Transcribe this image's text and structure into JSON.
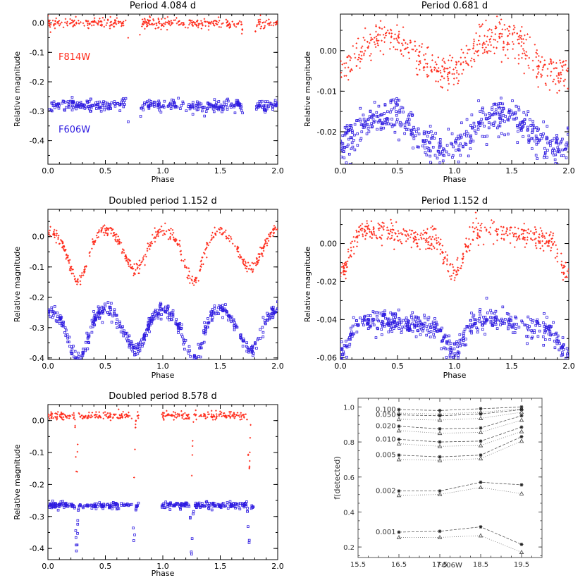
{
  "colors": {
    "f814w": "#ff2a1a",
    "f606w": "#2d1ae0",
    "axis": "#000000",
    "completeness": "#333333"
  },
  "chart_data": [
    {
      "type": "scatter",
      "title": "Period  4.084 d",
      "xlabel": "Phase",
      "ylabel": "Relative magnitude",
      "xlim": [
        0,
        2
      ],
      "ylim": [
        0.03,
        -0.48
      ],
      "y_inverted": true,
      "xticks": [
        "0.0",
        "0.5",
        "1.0",
        "1.5",
        "2.0"
      ],
      "yticks": [
        "0.0",
        "-0.1",
        "-0.2",
        "-0.3",
        "-0.4"
      ],
      "annotations": [
        "F814W",
        "F606W"
      ],
      "model": {
        "kind": "eclipse",
        "series": [
          {
            "name": "F814W",
            "color_key": "f814w",
            "marker": "dot",
            "offset": 0.0,
            "scatter": 0.009,
            "depth1": 0.42,
            "depth2": 0.42,
            "width": 0.035,
            "center1": 0.75,
            "center2": 0.75,
            "n": 400,
            "gaps": [
              [
                0.7,
                0.8
              ],
              [
                1.7,
                1.8
              ]
            ]
          },
          {
            "name": "F606W",
            "color_key": "f606w",
            "marker": "square",
            "offset": -0.28,
            "scatter": 0.009,
            "depth1": 0.42,
            "depth2": 0.42,
            "width": 0.035,
            "center1": 0.75,
            "center2": 0.75,
            "n": 400,
            "gaps": [
              [
                0.7,
                0.8
              ],
              [
                1.7,
                1.8
              ]
            ]
          }
        ]
      }
    },
    {
      "type": "scatter",
      "title": "Period  0.681 d",
      "xlabel": "Phase",
      "ylabel": "Relative magnitude",
      "xlim": [
        0,
        2
      ],
      "ylim": [
        0.009,
        -0.028
      ],
      "y_inverted": true,
      "xticks": [
        "0.0",
        "0.5",
        "1.0",
        "1.5",
        "2.0"
      ],
      "yticks": [
        "0.00",
        "-0.01",
        "-0.02"
      ],
      "model": {
        "kind": "sine",
        "series": [
          {
            "name": "F814W",
            "color_key": "f814w",
            "marker": "dot",
            "offset": -0.001,
            "amp": 0.0045,
            "phase0": 0.0,
            "harm": 1,
            "scatter": 0.0022,
            "n": 500
          },
          {
            "name": "F606W",
            "color_key": "f606w",
            "marker": "square",
            "offset": -0.02,
            "amp": 0.0045,
            "phase0": 0.0,
            "harm": 1,
            "scatter": 0.0022,
            "n": 500
          }
        ]
      }
    },
    {
      "type": "scatter",
      "title": "Doubled period  1.152 d",
      "xlabel": "Phase",
      "ylabel": "Relative magnitude",
      "xlim": [
        0,
        2
      ],
      "ylim": [
        0.09,
        -0.405
      ],
      "y_inverted": true,
      "xticks": [
        "0.0",
        "0.5",
        "1.0",
        "1.5",
        "2.0"
      ],
      "yticks": [
        "0.0",
        "-0.1",
        "-0.2",
        "-0.3",
        "-0.4"
      ],
      "model": {
        "kind": "ellipsoidal",
        "series": [
          {
            "name": "F814W",
            "color_key": "f814w",
            "marker": "dot",
            "offset": -0.02,
            "amp1": 0.09,
            "amp2": 0.05,
            "scatter": 0.01,
            "n": 500
          },
          {
            "name": "F606W",
            "color_key": "f606w",
            "marker": "square",
            "offset": -0.28,
            "amp1": 0.09,
            "amp2": 0.05,
            "scatter": 0.012,
            "n": 500
          }
        ]
      }
    },
    {
      "type": "scatter",
      "title": "Period  1.152 d",
      "xlabel": "Phase",
      "ylabel": "Relative magnitude",
      "xlim": [
        0,
        2
      ],
      "ylim": [
        0.018,
        -0.061
      ],
      "y_inverted": true,
      "xticks": [
        "0.0",
        "0.5",
        "1.0",
        "1.5",
        "2.0"
      ],
      "yticks": [
        "0.00",
        "-0.02",
        "-0.04",
        "-0.06"
      ],
      "model": {
        "kind": "dip",
        "series": [
          {
            "name": "F814W",
            "color_key": "f814w",
            "marker": "dot",
            "offset": 0.005,
            "depth": 0.021,
            "center": 1.0,
            "width": 0.22,
            "scatter": 0.003,
            "n": 500
          },
          {
            "name": "F606W",
            "color_key": "f606w",
            "marker": "square",
            "offset": -0.042,
            "depth": 0.015,
            "center": 1.0,
            "width": 0.22,
            "scatter": 0.003,
            "n": 500
          }
        ]
      }
    },
    {
      "type": "scatter",
      "title": "Doubled period  8.578 d",
      "xlabel": "Phase",
      "ylabel": "Relative magnitude",
      "xlim": [
        0,
        2
      ],
      "ylim": [
        0.05,
        -0.435
      ],
      "y_inverted": true,
      "xticks": [
        "0.0",
        "0.5",
        "1.0",
        "1.5",
        "2.0"
      ],
      "yticks": [
        "0.0",
        "-0.1",
        "-0.2",
        "-0.3",
        "-0.4"
      ],
      "model": {
        "kind": "eclipse",
        "series": [
          {
            "name": "F814W",
            "color_key": "f814w",
            "marker": "dot",
            "offset": 0.015,
            "scatter": 0.006,
            "depth1": 0.2,
            "depth2": 0.19,
            "width": 0.01,
            "center1": 0.25,
            "center2": 0.75,
            "n": 420,
            "gaps": [
              [
                0.79,
                0.99
              ],
              [
                1.79,
                2.0
              ]
            ]
          },
          {
            "name": "F606W",
            "color_key": "f606w",
            "marker": "square",
            "offset": -0.265,
            "scatter": 0.005,
            "depth1": 0.15,
            "depth2": 0.12,
            "width": 0.01,
            "center1": 0.25,
            "center2": 0.75,
            "n": 420,
            "gaps": [
              [
                0.79,
                0.99
              ],
              [
                1.79,
                2.0
              ]
            ]
          }
        ]
      }
    },
    {
      "type": "line",
      "xlabel": "F606W",
      "ylabel": "f(detected)",
      "xlim": [
        15.5,
        20.0
      ],
      "ylim": [
        0.14,
        1.05
      ],
      "xticks": [
        "15.5",
        "16.5",
        "17.5",
        "18.5",
        "19.5"
      ],
      "yticks": [
        "0.2",
        "0.4",
        "0.6",
        "0.8",
        "1.0"
      ],
      "x": [
        16.5,
        17.5,
        18.5,
        19.5
      ],
      "series": [
        {
          "name": "0.100",
          "star": [
            0.985,
            0.98,
            0.99,
            1.0
          ],
          "triangle": [
            0.965,
            0.96,
            0.97,
            0.99
          ]
        },
        {
          "name": "0.050",
          "star": [
            0.955,
            0.95,
            0.96,
            0.985
          ],
          "triangle": [
            0.93,
            0.925,
            0.935,
            0.97
          ]
        },
        {
          "name": "0.020",
          "star": [
            0.89,
            0.875,
            0.88,
            0.95
          ],
          "triangle": [
            0.865,
            0.85,
            0.855,
            0.925
          ]
        },
        {
          "name": "0.010",
          "star": [
            0.815,
            0.8,
            0.805,
            0.885
          ],
          "triangle": [
            0.79,
            0.775,
            0.78,
            0.86
          ]
        },
        {
          "name": "0.005",
          "star": [
            0.725,
            0.715,
            0.725,
            0.83
          ],
          "triangle": [
            0.7,
            0.695,
            0.705,
            0.805
          ]
        },
        {
          "name": "0.002",
          "star": [
            0.52,
            0.52,
            0.57,
            0.555
          ],
          "triangle": [
            0.495,
            0.5,
            0.54,
            0.505
          ]
        },
        {
          "name": "0.001",
          "star": [
            0.285,
            0.29,
            0.315,
            0.215
          ],
          "triangle": [
            0.255,
            0.255,
            0.265,
            0.17
          ]
        }
      ]
    }
  ]
}
